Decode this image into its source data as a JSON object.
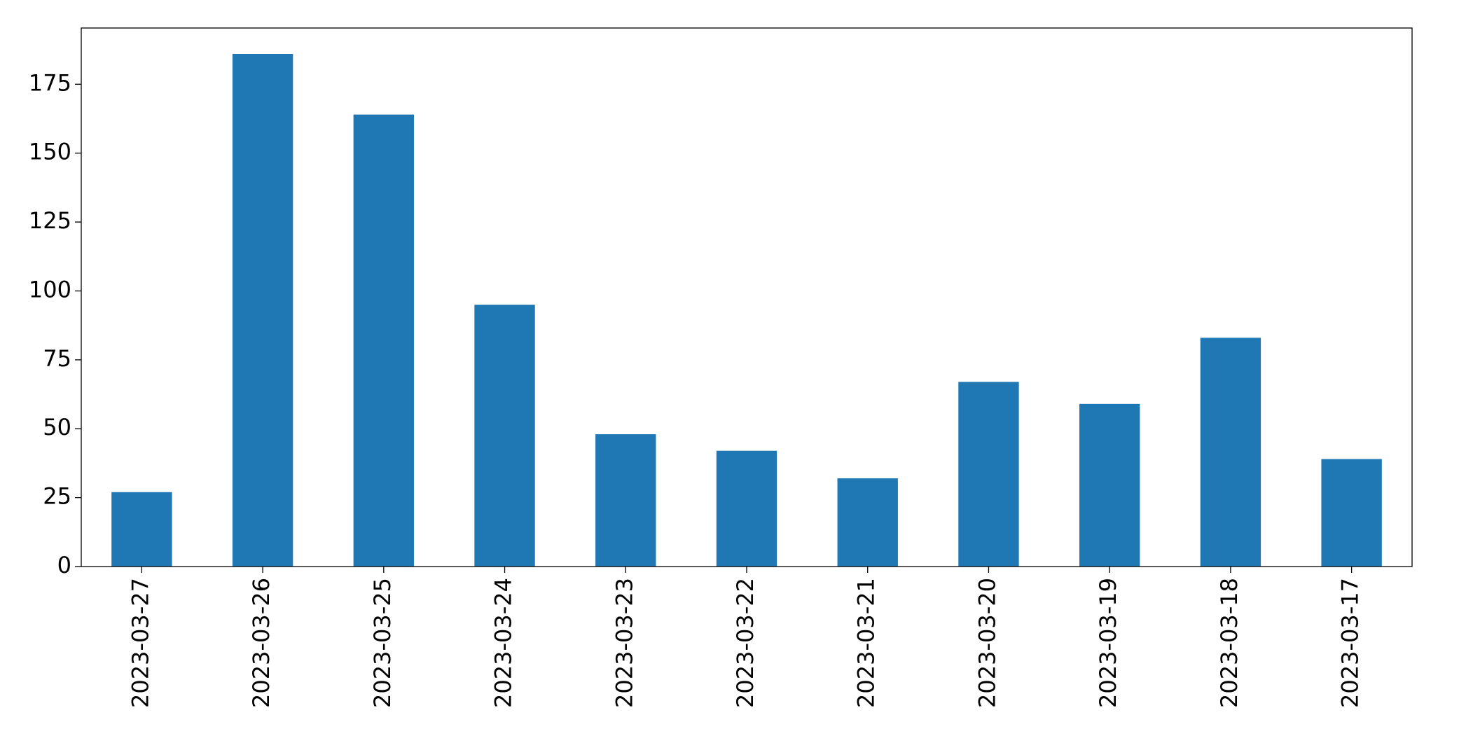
{
  "chart_data": {
    "type": "bar",
    "categories": [
      "2023-03-27",
      "2023-03-26",
      "2023-03-25",
      "2023-03-24",
      "2023-03-23",
      "2023-03-22",
      "2023-03-21",
      "2023-03-20",
      "2023-03-19",
      "2023-03-18",
      "2023-03-17"
    ],
    "values": [
      27,
      186,
      164,
      95,
      48,
      42,
      32,
      67,
      59,
      83,
      39
    ],
    "color": "#1f77b4",
    "ylim": [
      0,
      195.4
    ],
    "yticks": [
      0,
      25,
      50,
      75,
      100,
      125,
      150,
      175
    ],
    "grid": false
  }
}
